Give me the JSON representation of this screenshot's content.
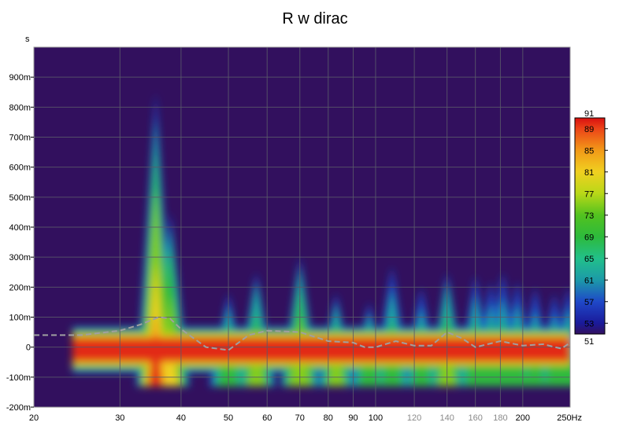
{
  "chart_data": {
    "type": "heatmap",
    "title": "R w dirac",
    "y_unit": "s",
    "x_scale": "log",
    "xlim": [
      20,
      250
    ],
    "ylim": [
      -0.2,
      1.0
    ],
    "x_ticks": [
      {
        "value": 20,
        "label": "20",
        "dim": false
      },
      {
        "value": 30,
        "label": "30",
        "dim": false
      },
      {
        "value": 40,
        "label": "40",
        "dim": false
      },
      {
        "value": 50,
        "label": "50",
        "dim": false
      },
      {
        "value": 60,
        "label": "60",
        "dim": false
      },
      {
        "value": 70,
        "label": "70",
        "dim": false
      },
      {
        "value": 80,
        "label": "80",
        "dim": false
      },
      {
        "value": 90,
        "label": "90",
        "dim": false
      },
      {
        "value": 100,
        "label": "100",
        "dim": false
      },
      {
        "value": 120,
        "label": "120",
        "dim": true
      },
      {
        "value": 140,
        "label": "140",
        "dim": true
      },
      {
        "value": 160,
        "label": "160",
        "dim": true
      },
      {
        "value": 180,
        "label": "180",
        "dim": true
      },
      {
        "value": 200,
        "label": "200",
        "dim": false
      },
      {
        "value": 250,
        "label": "250Hz",
        "dim": false
      }
    ],
    "y_ticks": [
      {
        "value": 0.9,
        "label": "900m"
      },
      {
        "value": 0.8,
        "label": "800m"
      },
      {
        "value": 0.7,
        "label": "700m"
      },
      {
        "value": 0.6,
        "label": "600m"
      },
      {
        "value": 0.5,
        "label": "500m"
      },
      {
        "value": 0.4,
        "label": "400m"
      },
      {
        "value": 0.3,
        "label": "300m"
      },
      {
        "value": 0.2,
        "label": "200m"
      },
      {
        "value": 0.1,
        "label": "100m"
      },
      {
        "value": 0,
        "label": "0"
      },
      {
        "value": -0.1,
        "label": "-100m"
      },
      {
        "value": -0.2,
        "label": "-200m"
      }
    ],
    "colorbar": {
      "min": 51,
      "max": 91,
      "min_label": "51",
      "max_label": "91",
      "ticks": [
        "89",
        "85",
        "81",
        "77",
        "73",
        "69",
        "65",
        "61",
        "57",
        "53"
      ],
      "tick_values": [
        89,
        85,
        81,
        77,
        73,
        69,
        65,
        61,
        57,
        53
      ],
      "stops": [
        {
          "v": 51,
          "color": "#32105e"
        },
        {
          "v": 53,
          "color": "#1a1a9a"
        },
        {
          "v": 57,
          "color": "#1f48c8"
        },
        {
          "v": 61,
          "color": "#1c9aa8"
        },
        {
          "v": 65,
          "color": "#22c08a"
        },
        {
          "v": 69,
          "color": "#2dba3c"
        },
        {
          "v": 73,
          "color": "#52c21f"
        },
        {
          "v": 77,
          "color": "#b8d818"
        },
        {
          "v": 81,
          "color": "#f0d020"
        },
        {
          "v": 85,
          "color": "#f29a18"
        },
        {
          "v": 89,
          "color": "#ec4418"
        },
        {
          "v": 91,
          "color": "#d81010"
        }
      ]
    },
    "background_color": "#32105e",
    "grid": true,
    "decay_peaks": [
      {
        "freq": 35.5,
        "level": 90,
        "top": 0.85
      },
      {
        "freq": 38,
        "level": 82,
        "top": 0.45
      },
      {
        "freq": 50,
        "level": 74,
        "top": 0.18
      },
      {
        "freq": 57,
        "level": 76,
        "top": 0.25
      },
      {
        "freq": 70,
        "level": 80,
        "top": 0.3
      },
      {
        "freq": 83,
        "level": 75,
        "top": 0.18
      },
      {
        "freq": 97,
        "level": 74,
        "top": 0.15
      },
      {
        "freq": 108,
        "level": 73,
        "top": 0.27
      },
      {
        "freq": 124,
        "level": 72,
        "top": 0.2
      },
      {
        "freq": 140,
        "level": 76,
        "top": 0.25
      },
      {
        "freq": 160,
        "level": 73,
        "top": 0.24
      },
      {
        "freq": 172,
        "level": 72,
        "top": 0.22
      },
      {
        "freq": 182,
        "level": 72,
        "top": 0.25
      },
      {
        "freq": 195,
        "level": 72,
        "top": 0.22
      },
      {
        "freq": 212,
        "level": 71,
        "top": 0.2
      },
      {
        "freq": 232,
        "level": 71,
        "top": 0.18
      },
      {
        "freq": 248,
        "level": 72,
        "top": 0.2
      }
    ],
    "series": [
      {
        "x": [
          20,
          25,
          30,
          33,
          36,
          38,
          40,
          45,
          50,
          55,
          60,
          70,
          80,
          90,
          95,
          100,
          110,
          120,
          130,
          140,
          150,
          160,
          180,
          200,
          220,
          240,
          250
        ],
        "y": [
          0.04,
          0.04,
          0.055,
          0.075,
          0.1,
          0.095,
          0.06,
          0.0,
          -0.01,
          0.04,
          0.055,
          0.05,
          0.02,
          0.015,
          0.0,
          0.0,
          0.02,
          0.005,
          0.005,
          0.05,
          0.03,
          0.0,
          0.02,
          0.005,
          0.01,
          -0.005,
          0.015
        ]
      }
    ]
  }
}
